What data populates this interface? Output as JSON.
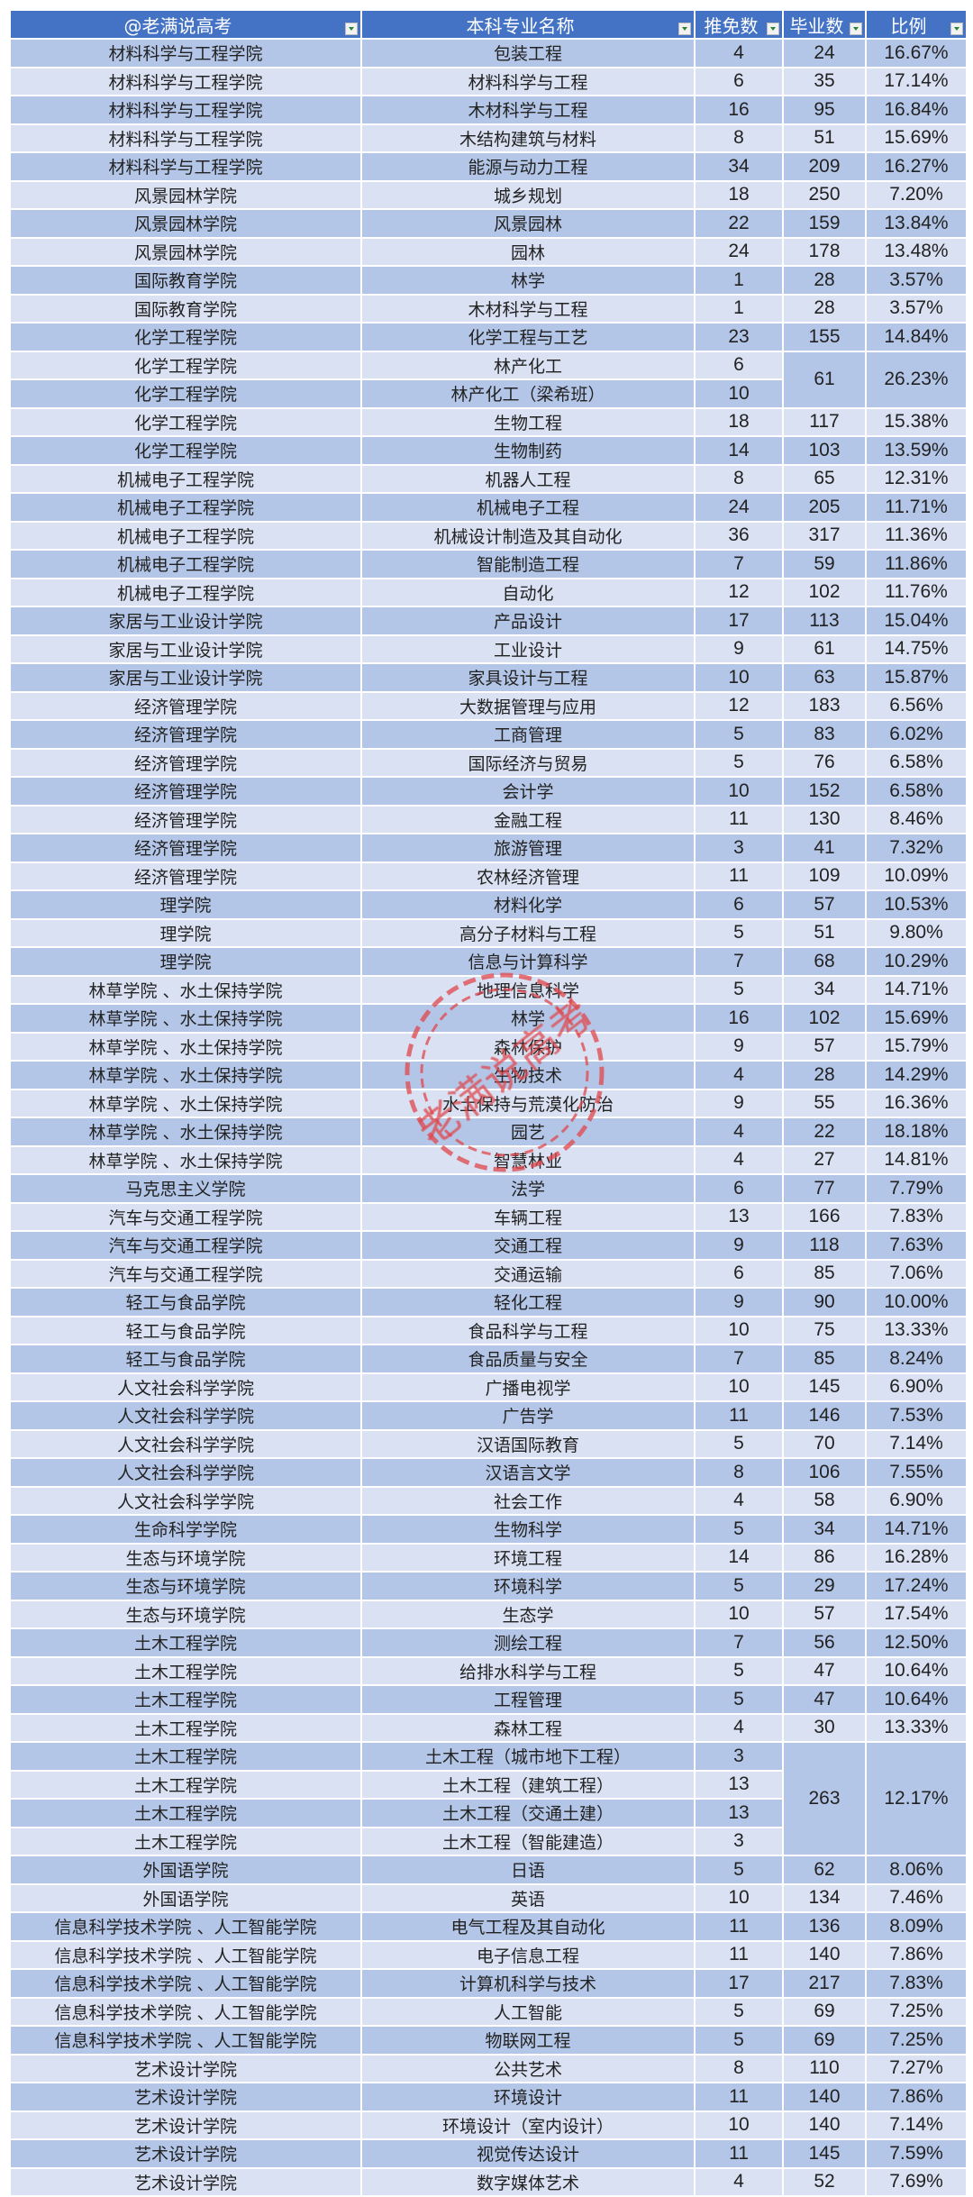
{
  "header": {
    "college": "@老满说高考",
    "major": "本科专业名称",
    "recommended": "推免数",
    "graduates": "毕业数",
    "ratio": "比例"
  },
  "watermark": "老满说高考",
  "colors": {
    "header": "#4472c4",
    "row_dark": "#b4c6e7",
    "row_light": "#d9e1f2",
    "stamp": "#e0474c"
  },
  "rows": [
    {
      "college": "材料科学与工程学院",
      "major": "包装工程",
      "recommended": "4",
      "graduates": "24",
      "ratio": "16.67%"
    },
    {
      "college": "材料科学与工程学院",
      "major": "材料科学与工程",
      "recommended": "6",
      "graduates": "35",
      "ratio": "17.14%"
    },
    {
      "college": "材料科学与工程学院",
      "major": "木材科学与工程",
      "recommended": "16",
      "graduates": "95",
      "ratio": "16.84%"
    },
    {
      "college": "材料科学与工程学院",
      "major": "木结构建筑与材料",
      "recommended": "8",
      "graduates": "51",
      "ratio": "15.69%"
    },
    {
      "college": "材料科学与工程学院",
      "major": "能源与动力工程",
      "recommended": "34",
      "graduates": "209",
      "ratio": "16.27%"
    },
    {
      "college": "风景园林学院",
      "major": "城乡规划",
      "recommended": "18",
      "graduates": "250",
      "ratio": "7.20%"
    },
    {
      "college": "风景园林学院",
      "major": "风景园林",
      "recommended": "22",
      "graduates": "159",
      "ratio": "13.84%"
    },
    {
      "college": "风景园林学院",
      "major": "园林",
      "recommended": "24",
      "graduates": "178",
      "ratio": "13.48%"
    },
    {
      "college": "国际教育学院",
      "major": "林学",
      "recommended": "1",
      "graduates": "28",
      "ratio": "3.57%"
    },
    {
      "college": "国际教育学院",
      "major": "木材科学与工程",
      "recommended": "1",
      "graduates": "28",
      "ratio": "3.57%"
    },
    {
      "college": "化学工程学院",
      "major": "化学工程与工艺",
      "recommended": "23",
      "graduates": "155",
      "ratio": "14.84%"
    },
    {
      "college": "化学工程学院",
      "major": "林产化工",
      "recommended": "6",
      "graduates": "61",
      "ratio": "26.23%",
      "span": 2
    },
    {
      "college": "化学工程学院",
      "major": "林产化工（梁希班）",
      "recommended": "10",
      "merged": true
    },
    {
      "college": "化学工程学院",
      "major": "生物工程",
      "recommended": "18",
      "graduates": "117",
      "ratio": "15.38%"
    },
    {
      "college": "化学工程学院",
      "major": "生物制药",
      "recommended": "14",
      "graduates": "103",
      "ratio": "13.59%"
    },
    {
      "college": "机械电子工程学院",
      "major": "机器人工程",
      "recommended": "8",
      "graduates": "65",
      "ratio": "12.31%"
    },
    {
      "college": "机械电子工程学院",
      "major": "机械电子工程",
      "recommended": "24",
      "graduates": "205",
      "ratio": "11.71%"
    },
    {
      "college": "机械电子工程学院",
      "major": "机械设计制造及其自动化",
      "recommended": "36",
      "graduates": "317",
      "ratio": "11.36%"
    },
    {
      "college": "机械电子工程学院",
      "major": "智能制造工程",
      "recommended": "7",
      "graduates": "59",
      "ratio": "11.86%"
    },
    {
      "college": "机械电子工程学院",
      "major": "自动化",
      "recommended": "12",
      "graduates": "102",
      "ratio": "11.76%"
    },
    {
      "college": "家居与工业设计学院",
      "major": "产品设计",
      "recommended": "17",
      "graduates": "113",
      "ratio": "15.04%"
    },
    {
      "college": "家居与工业设计学院",
      "major": "工业设计",
      "recommended": "9",
      "graduates": "61",
      "ratio": "14.75%"
    },
    {
      "college": "家居与工业设计学院",
      "major": "家具设计与工程",
      "recommended": "10",
      "graduates": "63",
      "ratio": "15.87%"
    },
    {
      "college": "经济管理学院",
      "major": "大数据管理与应用",
      "recommended": "12",
      "graduates": "183",
      "ratio": "6.56%"
    },
    {
      "college": "经济管理学院",
      "major": "工商管理",
      "recommended": "5",
      "graduates": "83",
      "ratio": "6.02%"
    },
    {
      "college": "经济管理学院",
      "major": "国际经济与贸易",
      "recommended": "5",
      "graduates": "76",
      "ratio": "6.58%"
    },
    {
      "college": "经济管理学院",
      "major": "会计学",
      "recommended": "10",
      "graduates": "152",
      "ratio": "6.58%"
    },
    {
      "college": "经济管理学院",
      "major": "金融工程",
      "recommended": "11",
      "graduates": "130",
      "ratio": "8.46%"
    },
    {
      "college": "经济管理学院",
      "major": "旅游管理",
      "recommended": "3",
      "graduates": "41",
      "ratio": "7.32%"
    },
    {
      "college": "经济管理学院",
      "major": "农林经济管理",
      "recommended": "11",
      "graduates": "109",
      "ratio": "10.09%"
    },
    {
      "college": "理学院",
      "major": "材料化学",
      "recommended": "6",
      "graduates": "57",
      "ratio": "10.53%"
    },
    {
      "college": "理学院",
      "major": "高分子材料与工程",
      "recommended": "5",
      "graduates": "51",
      "ratio": "9.80%"
    },
    {
      "college": "理学院",
      "major": "信息与计算科学",
      "recommended": "7",
      "graduates": "68",
      "ratio": "10.29%"
    },
    {
      "college": "林草学院 、水土保持学院",
      "major": "地理信息科学",
      "recommended": "5",
      "graduates": "34",
      "ratio": "14.71%"
    },
    {
      "college": "林草学院 、水土保持学院",
      "major": "林学",
      "recommended": "16",
      "graduates": "102",
      "ratio": "15.69%"
    },
    {
      "college": "林草学院 、水土保持学院",
      "major": "森林保护",
      "recommended": "9",
      "graduates": "57",
      "ratio": "15.79%"
    },
    {
      "college": "林草学院 、水土保持学院",
      "major": "生物技术",
      "recommended": "4",
      "graduates": "28",
      "ratio": "14.29%"
    },
    {
      "college": "林草学院 、水土保持学院",
      "major": "水土保持与荒漠化防治",
      "recommended": "9",
      "graduates": "55",
      "ratio": "16.36%"
    },
    {
      "college": "林草学院 、水土保持学院",
      "major": "园艺",
      "recommended": "4",
      "graduates": "22",
      "ratio": "18.18%"
    },
    {
      "college": "林草学院 、水土保持学院",
      "major": "智慧林业",
      "recommended": "4",
      "graduates": "27",
      "ratio": "14.81%"
    },
    {
      "college": "马克思主义学院",
      "major": "法学",
      "recommended": "6",
      "graduates": "77",
      "ratio": "7.79%"
    },
    {
      "college": "汽车与交通工程学院",
      "major": "车辆工程",
      "recommended": "13",
      "graduates": "166",
      "ratio": "7.83%"
    },
    {
      "college": "汽车与交通工程学院",
      "major": "交通工程",
      "recommended": "9",
      "graduates": "118",
      "ratio": "7.63%"
    },
    {
      "college": "汽车与交通工程学院",
      "major": "交通运输",
      "recommended": "6",
      "graduates": "85",
      "ratio": "7.06%"
    },
    {
      "college": "轻工与食品学院",
      "major": "轻化工程",
      "recommended": "9",
      "graduates": "90",
      "ratio": "10.00%"
    },
    {
      "college": "轻工与食品学院",
      "major": "食品科学与工程",
      "recommended": "10",
      "graduates": "75",
      "ratio": "13.33%"
    },
    {
      "college": "轻工与食品学院",
      "major": "食品质量与安全",
      "recommended": "7",
      "graduates": "85",
      "ratio": "8.24%"
    },
    {
      "college": "人文社会科学学院",
      "major": "广播电视学",
      "recommended": "10",
      "graduates": "145",
      "ratio": "6.90%"
    },
    {
      "college": "人文社会科学学院",
      "major": "广告学",
      "recommended": "11",
      "graduates": "146",
      "ratio": "7.53%"
    },
    {
      "college": "人文社会科学学院",
      "major": "汉语国际教育",
      "recommended": "5",
      "graduates": "70",
      "ratio": "7.14%"
    },
    {
      "college": "人文社会科学学院",
      "major": "汉语言文学",
      "recommended": "8",
      "graduates": "106",
      "ratio": "7.55%"
    },
    {
      "college": "人文社会科学学院",
      "major": "社会工作",
      "recommended": "4",
      "graduates": "58",
      "ratio": "6.90%"
    },
    {
      "college": "生命科学学院",
      "major": "生物科学",
      "recommended": "5",
      "graduates": "34",
      "ratio": "14.71%"
    },
    {
      "college": "生态与环境学院",
      "major": "环境工程",
      "recommended": "14",
      "graduates": "86",
      "ratio": "16.28%"
    },
    {
      "college": "生态与环境学院",
      "major": "环境科学",
      "recommended": "5",
      "graduates": "29",
      "ratio": "17.24%"
    },
    {
      "college": "生态与环境学院",
      "major": "生态学",
      "recommended": "10",
      "graduates": "57",
      "ratio": "17.54%"
    },
    {
      "college": "土木工程学院",
      "major": "测绘工程",
      "recommended": "7",
      "graduates": "56",
      "ratio": "12.50%"
    },
    {
      "college": "土木工程学院",
      "major": "给排水科学与工程",
      "recommended": "5",
      "graduates": "47",
      "ratio": "10.64%"
    },
    {
      "college": "土木工程学院",
      "major": "工程管理",
      "recommended": "5",
      "graduates": "47",
      "ratio": "10.64%"
    },
    {
      "college": "土木工程学院",
      "major": "森林工程",
      "recommended": "4",
      "graduates": "30",
      "ratio": "13.33%"
    },
    {
      "college": "土木工程学院",
      "major": "土木工程（城市地下工程）",
      "recommended": "3",
      "graduates": "263",
      "ratio": "12.17%",
      "span": 4
    },
    {
      "college": "土木工程学院",
      "major": "土木工程（建筑工程）",
      "recommended": "13",
      "merged": true
    },
    {
      "college": "土木工程学院",
      "major": "土木工程（交通土建）",
      "recommended": "13",
      "merged": true
    },
    {
      "college": "土木工程学院",
      "major": "土木工程（智能建造）",
      "recommended": "3",
      "merged": true
    },
    {
      "college": "外国语学院",
      "major": "日语",
      "recommended": "5",
      "graduates": "62",
      "ratio": "8.06%"
    },
    {
      "college": "外国语学院",
      "major": "英语",
      "recommended": "10",
      "graduates": "134",
      "ratio": "7.46%"
    },
    {
      "college": "信息科学技术学院 、人工智能学院",
      "major": "电气工程及其自动化",
      "recommended": "11",
      "graduates": "136",
      "ratio": "8.09%"
    },
    {
      "college": "信息科学技术学院 、人工智能学院",
      "major": "电子信息工程",
      "recommended": "11",
      "graduates": "140",
      "ratio": "7.86%"
    },
    {
      "college": "信息科学技术学院 、人工智能学院",
      "major": "计算机科学与技术",
      "recommended": "17",
      "graduates": "217",
      "ratio": "7.83%"
    },
    {
      "college": "信息科学技术学院 、人工智能学院",
      "major": "人工智能",
      "recommended": "5",
      "graduates": "69",
      "ratio": "7.25%"
    },
    {
      "college": "信息科学技术学院 、人工智能学院",
      "major": "物联网工程",
      "recommended": "5",
      "graduates": "69",
      "ratio": "7.25%"
    },
    {
      "college": "艺术设计学院",
      "major": "公共艺术",
      "recommended": "8",
      "graduates": "110",
      "ratio": "7.27%"
    },
    {
      "college": "艺术设计学院",
      "major": "环境设计",
      "recommended": "11",
      "graduates": "140",
      "ratio": "7.86%"
    },
    {
      "college": "艺术设计学院",
      "major": "环境设计（室内设计）",
      "recommended": "10",
      "graduates": "140",
      "ratio": "7.14%"
    },
    {
      "college": "艺术设计学院",
      "major": "视觉传达设计",
      "recommended": "11",
      "graduates": "145",
      "ratio": "7.59%"
    },
    {
      "college": "艺术设计学院",
      "major": "数字媒体艺术",
      "recommended": "4",
      "graduates": "52",
      "ratio": "7.69%"
    }
  ]
}
